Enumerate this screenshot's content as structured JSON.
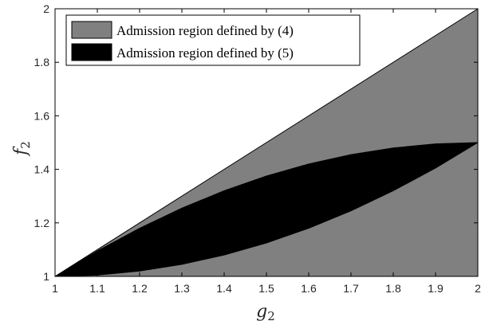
{
  "chart_data": {
    "type": "area",
    "x_range": [
      1,
      2
    ],
    "y_range": [
      1,
      2
    ],
    "x_ticks": [
      "1",
      "1.1",
      "1.2",
      "1.3",
      "1.4",
      "1.5",
      "1.6",
      "1.7",
      "1.8",
      "1.9",
      "2"
    ],
    "y_ticks": [
      "1",
      "1.2",
      "1.4",
      "1.6",
      "1.8",
      "2"
    ],
    "xlabel_base": "g",
    "xlabel_sub": "2",
    "ylabel_base": "f",
    "ylabel_sub": "2",
    "grid": false,
    "legend_placement": "top-left",
    "series": [
      {
        "name": "Admission region defined by (4)",
        "color": "#808080",
        "region": "between y = 1 and y = x",
        "lower": [
          [
            1,
            1
          ],
          [
            2,
            1
          ]
        ],
        "upper": [
          [
            1,
            1
          ],
          [
            2,
            2
          ]
        ]
      },
      {
        "name": "Admission region defined by (5)",
        "color": "#000000",
        "lower": [
          [
            1,
            1
          ],
          [
            1.1,
            1.005
          ],
          [
            1.2,
            1.02
          ],
          [
            1.3,
            1.045
          ],
          [
            1.4,
            1.08
          ],
          [
            1.5,
            1.125
          ],
          [
            1.6,
            1.18
          ],
          [
            1.7,
            1.245
          ],
          [
            1.8,
            1.32
          ],
          [
            1.9,
            1.405
          ],
          [
            2,
            1.5
          ]
        ],
        "upper": [
          [
            1,
            1
          ],
          [
            1.1,
            1.095
          ],
          [
            1.2,
            1.18
          ],
          [
            1.3,
            1.255
          ],
          [
            1.4,
            1.32
          ],
          [
            1.5,
            1.375
          ],
          [
            1.6,
            1.42
          ],
          [
            1.7,
            1.455
          ],
          [
            1.8,
            1.48
          ],
          [
            1.9,
            1.495
          ],
          [
            2,
            1.5
          ]
        ]
      }
    ]
  }
}
